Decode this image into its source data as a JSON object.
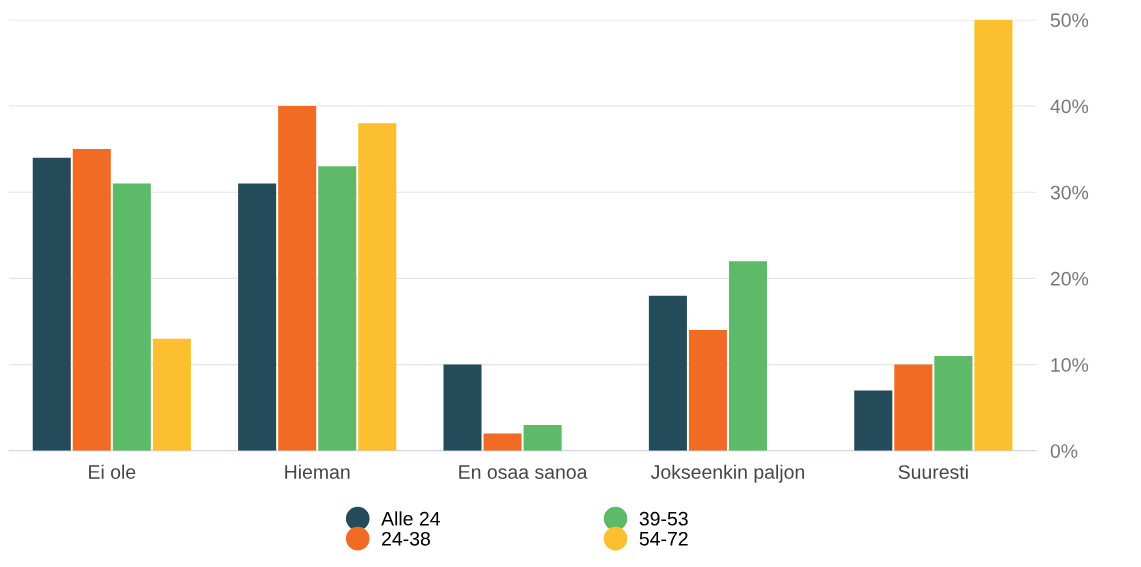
{
  "chart_data": {
    "type": "bar",
    "categories": [
      "Ei ole",
      "Hieman",
      "En osaa sanoa",
      "Jokseenkin paljon",
      "Suuresti"
    ],
    "series": [
      {
        "name": "Alle 24",
        "color": "#234b5a",
        "values": [
          34,
          31,
          10,
          18,
          7
        ]
      },
      {
        "name": "24-38",
        "color": "#f26b24",
        "values": [
          35,
          40,
          2,
          14,
          10
        ]
      },
      {
        "name": "39-53",
        "color": "#5cba68",
        "values": [
          31,
          33,
          3,
          22,
          11
        ]
      },
      {
        "name": "54-72",
        "color": "#fbbf2f",
        "values": [
          13,
          38,
          null,
          null,
          50
        ]
      }
    ],
    "ylim": [
      0,
      50
    ],
    "yticks": [
      {
        "value": 0,
        "label": "0%"
      },
      {
        "value": 10,
        "label": "10%"
      },
      {
        "value": 20,
        "label": "20%"
      },
      {
        "value": 30,
        "label": "30%"
      },
      {
        "value": 40,
        "label": "40%"
      },
      {
        "value": 50,
        "label": "50%"
      }
    ],
    "grid": "y",
    "legend": "bottom",
    "marker": "circle"
  }
}
